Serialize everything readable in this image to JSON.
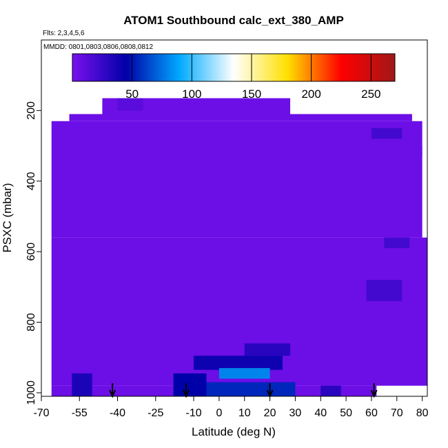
{
  "chart_data": {
    "type": "heatmap",
    "title": "ATOM1 Southbound calc_ext_380_AMP",
    "flights_label": "Flts: 2,3,4,5,6",
    "dates_label": "MMDD: 0801,0803,0806,0808,0812",
    "xlabel": "Latitude (deg N)",
    "ylabel": "PSXC (mbar)",
    "xlim": [
      -70,
      82
    ],
    "ylim": [
      1010,
      0
    ],
    "x_ticks": [
      -70,
      -55,
      -40,
      -25,
      -10,
      0,
      10,
      20,
      30,
      40,
      50,
      60,
      70,
      80
    ],
    "x_tick_labels": [
      "-70",
      "-55",
      "-40",
      "-25",
      "-10",
      "0",
      "10",
      "20",
      "30",
      "40",
      "50",
      "60",
      "70",
      "80"
    ],
    "y_ticks": [
      200,
      400,
      600,
      800,
      1000
    ],
    "y_tick_labels": [
      "200",
      "400",
      "600",
      "800",
      "1000"
    ],
    "colorbar": {
      "range": [
        0,
        270
      ],
      "ticks": [
        50,
        100,
        150,
        200,
        250
      ],
      "tick_labels": [
        "50",
        "100",
        "150",
        "200",
        "250"
      ],
      "colors": [
        "#7a10ee",
        "#0000a8",
        "#00aaff",
        "#ffffff",
        "#ffe000",
        "#ff0000",
        "#a01818"
      ]
    },
    "background_value": 5,
    "regions": [
      {
        "lat": [
          -59,
          76
        ],
        "p": [
          210,
          230
        ]
      },
      {
        "lat": [
          -46,
          28
        ],
        "p": [
          165,
          210
        ]
      },
      {
        "lat": [
          -66,
          80
        ],
        "p": [
          230,
          560
        ]
      },
      {
        "lat": [
          -66,
          82
        ],
        "p": [
          560,
          980
        ]
      },
      {
        "lat": [
          -66,
          62
        ],
        "p": [
          980,
          1010
        ]
      },
      {
        "lat": [
          68,
          80
        ],
        "p": [
          300,
          330
        ]
      }
    ],
    "enhanced_cells": [
      {
        "lat": [
          -10,
          25
        ],
        "p": [
          895,
          935
        ],
        "value": 40
      },
      {
        "lat": [
          0,
          20
        ],
        "p": [
          930,
          960
        ],
        "value": 80
      },
      {
        "lat": [
          -5,
          30
        ],
        "p": [
          970,
          1010
        ],
        "value": 55
      },
      {
        "lat": [
          -58,
          -50
        ],
        "p": [
          945,
          1010
        ],
        "value": 35
      },
      {
        "lat": [
          -18,
          -5
        ],
        "p": [
          945,
          1010
        ],
        "value": 45
      },
      {
        "lat": [
          10,
          28
        ],
        "p": [
          860,
          895
        ],
        "value": 30
      },
      {
        "lat": [
          40,
          48
        ],
        "p": [
          980,
          1010
        ],
        "value": 30
      },
      {
        "lat": [
          58,
          72
        ],
        "p": [
          680,
          740
        ],
        "value": 20
      },
      {
        "lat": [
          65,
          75
        ],
        "p": [
          560,
          590
        ],
        "value": 20
      },
      {
        "lat": [
          60,
          72
        ],
        "p": [
          250,
          280
        ],
        "value": 20
      },
      {
        "lat": [
          -40,
          -30
        ],
        "p": [
          165,
          200
        ],
        "value": 12
      }
    ],
    "arrows_lat": [
      -42,
      -13,
      20,
      61
    ]
  }
}
